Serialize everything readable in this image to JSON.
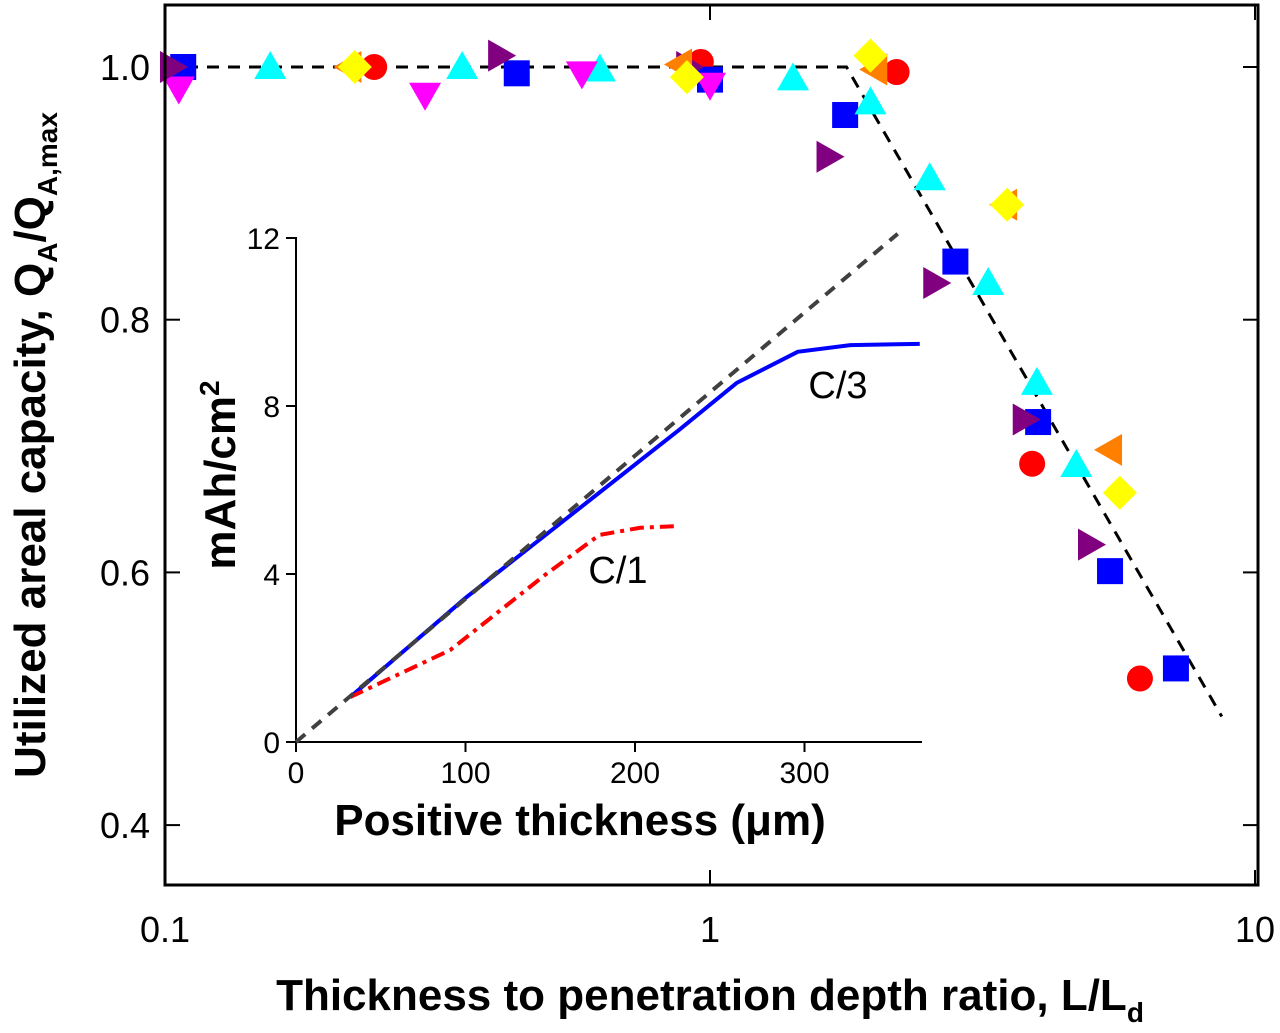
{
  "chart_data": [
    {
      "type": "scatter",
      "xlabel": "Thickness to penetration depth ratio, L/L",
      "xlabel_sub": "d",
      "ylabel_parts": [
        "Utilized areal capacity, Q",
        "A",
        "/Q",
        "A,max"
      ],
      "x_scale": "log",
      "xlim": [
        0.1,
        10
      ],
      "ylim": [
        0.353,
        1.049
      ],
      "x_ticks": [
        "0.1",
        "1",
        "10"
      ],
      "y_ticks": [
        "0.4",
        "0.6",
        "0.8",
        "1.0"
      ],
      "grid": false,
      "series": [
        {
          "marker": "circle",
          "color": "#ff0000",
          "x": [
            0.242,
            0.962,
            2.2,
            3.9,
            6.15
          ],
          "y": [
            1.0,
            1.004,
            0.996,
            0.686,
            0.516
          ]
        },
        {
          "marker": "square",
          "color": "#0000ff",
          "x": [
            0.108,
            0.442,
            1.0,
            1.77,
            2.82,
            4.0,
            5.42,
            7.16
          ],
          "y": [
            1.0,
            0.995,
            0.99,
            0.962,
            0.846,
            0.719,
            0.601,
            0.524
          ]
        },
        {
          "marker": "triangle-up",
          "color": "#00ffff",
          "x": [
            0.156,
            0.351,
            0.628,
            1.42,
            1.97,
            2.53,
            3.24,
            3.98,
            4.7
          ],
          "y": [
            1.0,
            1.0,
            0.998,
            0.991,
            0.972,
            0.912,
            0.829,
            0.75,
            0.685
          ]
        },
        {
          "marker": "triangle-down",
          "color": "#ff00ff",
          "x": [
            0.106,
            0.3,
            0.582,
            1.0
          ],
          "y": [
            0.983,
            0.978,
            0.995,
            0.986
          ]
        },
        {
          "marker": "triangle-right",
          "color": "#800080",
          "x": [
            0.103,
            0.412,
            0.912,
            1.65,
            2.59,
            3.78,
            4.98
          ],
          "y": [
            1.0,
            1.009,
            1.0,
            0.929,
            0.829,
            0.721,
            0.622
          ]
        },
        {
          "marker": "triangle-left",
          "color": "#ff8000",
          "x": [
            0.218,
            0.881,
            2.01,
            3.48,
            5.42
          ],
          "y": [
            1.0,
            1.002,
            0.998,
            0.891,
            0.697
          ]
        },
        {
          "marker": "diamond",
          "color": "#ffff00",
          "x": [
            0.223,
            0.907,
            1.97,
            3.51,
            5.65
          ],
          "y": [
            1.0,
            0.992,
            1.009,
            0.891,
            0.663
          ]
        }
      ],
      "fit_line": {
        "style": "dashed",
        "color": "#000000",
        "x": [
          0.1,
          1.78,
          8.69
        ],
        "y": [
          1.0,
          1.0,
          0.486
        ]
      }
    },
    {
      "type": "line",
      "inset": true,
      "xlabel": "Positive thickness (μm)",
      "ylabel": "mAh/cm",
      "ylabel_sup": "2",
      "xlim": [
        0,
        369
      ],
      "ylim": [
        0,
        12
      ],
      "x_ticks": [
        "0",
        "100",
        "200",
        "300"
      ],
      "y_ticks": [
        "0",
        "4",
        "8",
        "12"
      ],
      "series": [
        {
          "name": "C/3",
          "style": "solid",
          "color": "#0000ff",
          "x": [
            32,
            100,
            226,
            260,
            296,
            327,
            368
          ],
          "y": [
            1.07,
            3.43,
            7.43,
            8.55,
            9.29,
            9.45,
            9.48
          ]
        },
        {
          "name": "C/1",
          "style": "dash-dot",
          "color": "#ff0000",
          "x": [
            32,
            91,
            147,
            179,
            203,
            224
          ],
          "y": [
            1.07,
            2.19,
            3.98,
            4.93,
            5.1,
            5.14
          ]
        },
        {
          "style": "dashed",
          "color": "#404040",
          "x": [
            0,
            355
          ],
          "y": [
            0,
            12.1
          ]
        }
      ]
    }
  ]
}
